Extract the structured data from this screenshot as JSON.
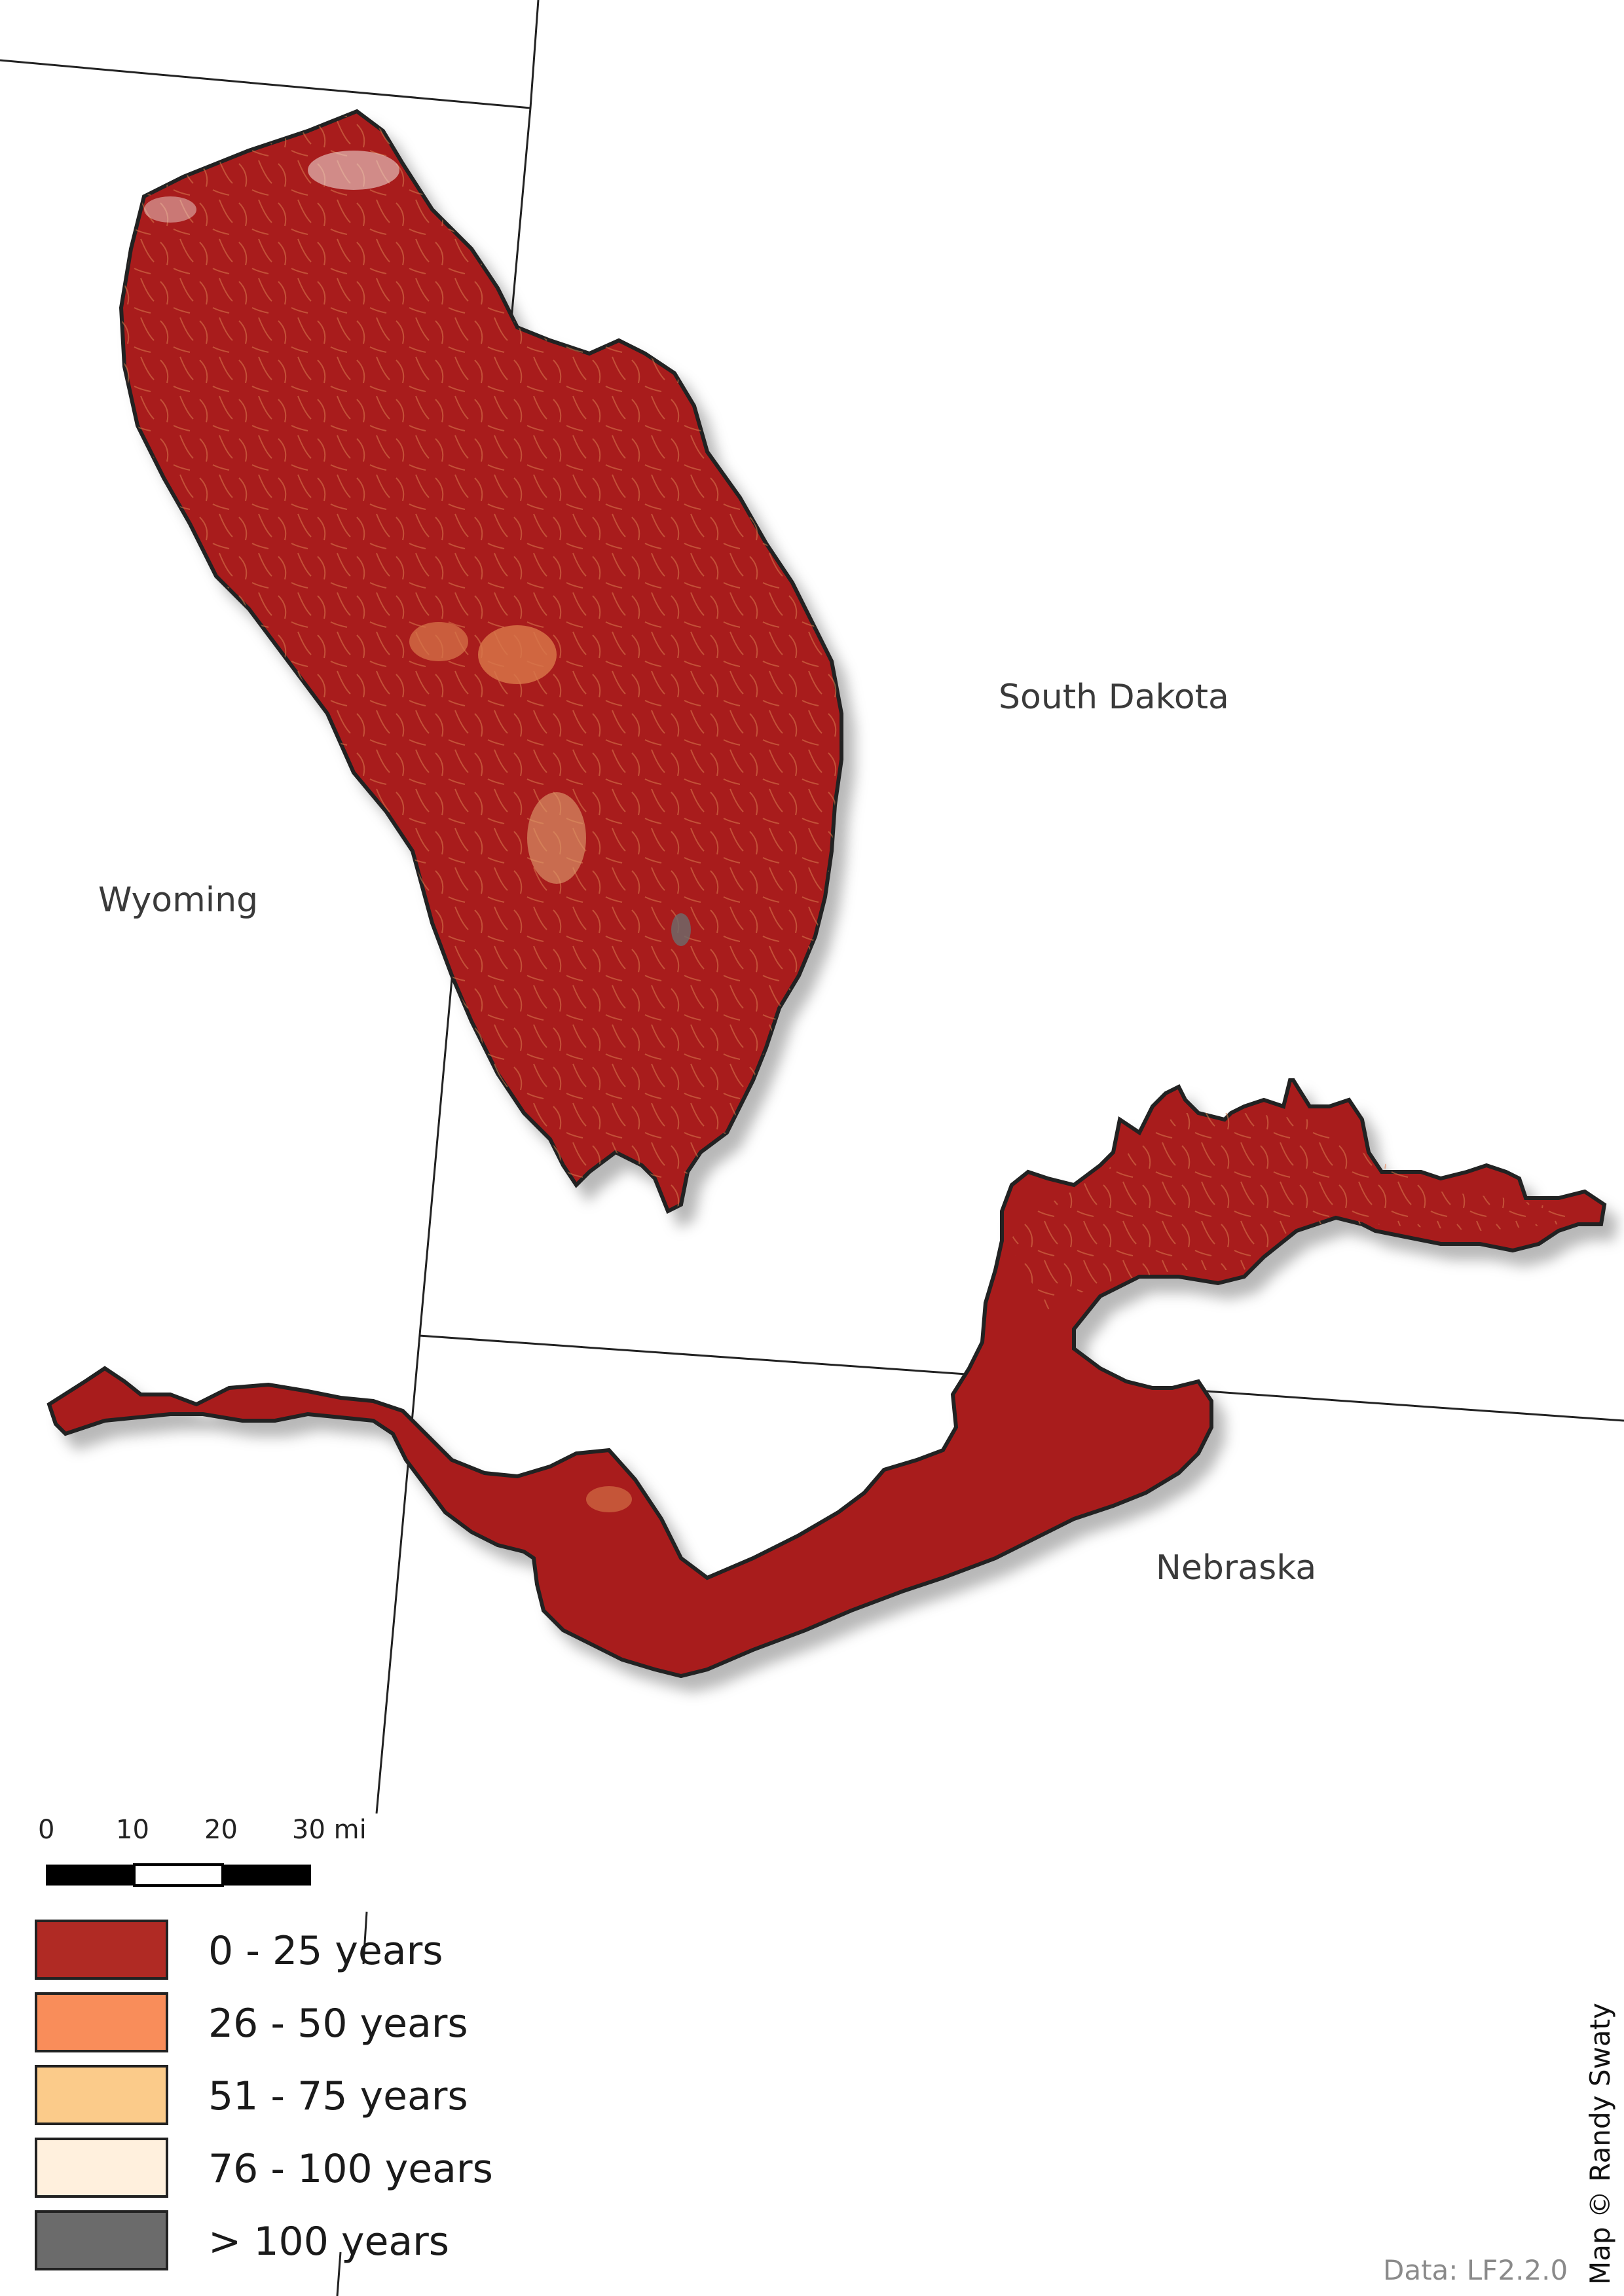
{
  "map": {
    "states": [
      {
        "name": "Wyoming"
      },
      {
        "name": "South Dakota"
      },
      {
        "name": "Nebraska"
      }
    ]
  },
  "scalebar": {
    "ticks": [
      "0",
      "10",
      "20",
      "30 mi"
    ],
    "max_miles": 30
  },
  "legend": {
    "items": [
      {
        "label": "0  -  25 years",
        "color": "#b02a24"
      },
      {
        "label": "26  -  50 years",
        "color": "#f98d5a"
      },
      {
        "label": "51  -  75 years",
        "color": "#fbcb8a"
      },
      {
        "label": "76  -  100 years",
        "color": "#fff0dd"
      },
      {
        "label": ">  100 years",
        "color": "#6b6b6b"
      }
    ]
  },
  "credit": "Map © Randy Swaty",
  "source": "Data: LF2.2.0",
  "colors": {
    "region_fill": "#a81e1e",
    "region_outline": "#222222",
    "border_line": "#222222"
  }
}
